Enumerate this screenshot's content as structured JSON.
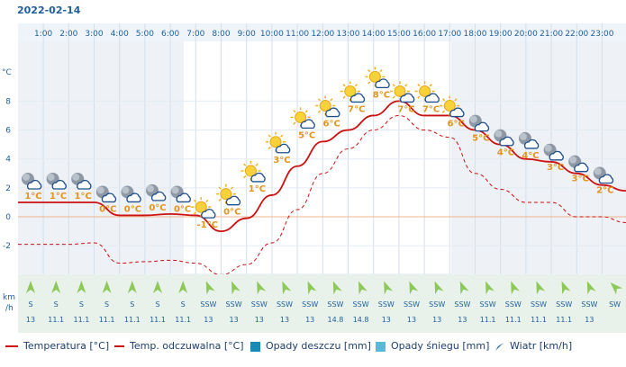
{
  "date": "2022-02-14",
  "units": {
    "temp_axis": "°C",
    "wind_axis_top": "km",
    "wind_axis_bottom": "/h"
  },
  "legend": {
    "temperature": "Temperatura [°C]",
    "feels_like": "Temp. odczuwalna [°C]",
    "rain": "Opady deszczu [mm]",
    "snow": "Opady śniegu [mm]",
    "wind": "Wiatr [km/h]"
  },
  "colors": {
    "temperature": "#cc1111",
    "feels_like": "#cc1111",
    "rain": "#1a8ab4",
    "snow": "#5bb8d6",
    "axis_text": "#1f5f9e",
    "temp_label": "#e3941c"
  },
  "chart_data": {
    "type": "line",
    "x": [
      "1:00",
      "2:00",
      "3:00",
      "4:00",
      "5:00",
      "6:00",
      "7:00",
      "8:00",
      "9:00",
      "10:00",
      "11:00",
      "12:00",
      "13:00",
      "14:00",
      "15:00",
      "16:00",
      "17:00",
      "18:00",
      "19:00",
      "20:00",
      "21:00",
      "22:00",
      "23:00"
    ],
    "series": [
      {
        "name": "Temperatura [°C]",
        "values": [
          1.0,
          1.0,
          1.0,
          0.1,
          0.1,
          0.2,
          0.1,
          -1.0,
          -0.1,
          1.5,
          3.5,
          5.2,
          6.0,
          7.0,
          8.0,
          7.0,
          7.0,
          6.0,
          5.0,
          4.0,
          3.8,
          3.0,
          2.2
        ]
      },
      {
        "name": "Temp. odczuwalna [°C]",
        "values": [
          -1.9,
          -1.9,
          -1.8,
          -3.2,
          -3.1,
          -3.0,
          -3.2,
          -4.0,
          -3.3,
          -1.8,
          0.5,
          3.0,
          4.7,
          6.0,
          7.0,
          6.0,
          5.5,
          3.0,
          1.9,
          1.0,
          1.0,
          0.0,
          0.0
        ]
      }
    ],
    "temp_labels": [
      "1°C",
      "1°C",
      "1°C",
      "0°C",
      "0°C",
      "0°C",
      "0°C",
      "-1°C",
      "0°C",
      "1°C",
      "3°C",
      "5°C",
      "6°C",
      "7°C",
      "8°C",
      "7°C",
      "7°C",
      "6°C",
      "5°C",
      "4°C",
      "4°C",
      "3°C",
      "3°C",
      "2°C"
    ],
    "wind_dir": [
      "S",
      "S",
      "S",
      "S",
      "S",
      "S",
      "S",
      "SSW",
      "SSW",
      "SSW",
      "SSW",
      "SSW",
      "SSW",
      "SSW",
      "SSW",
      "SSW",
      "SSW",
      "SSW",
      "SSW",
      "SSW",
      "SSW",
      "SSW",
      "SSW",
      "SW"
    ],
    "wind_speed": [
      "13",
      "11.1",
      "11.1",
      "11.1",
      "11.1",
      "11.1",
      "11.1",
      "13",
      "13",
      "13",
      "13",
      "13",
      "14.8",
      "14.8",
      "13",
      "13",
      "13",
      "13",
      "11.1",
      "11.1",
      "11.1",
      "11.1",
      "13",
      ""
    ],
    "y_ticks": [
      "8",
      "6",
      "4",
      "2",
      "0",
      "-2"
    ],
    "ylim": [
      -4,
      10
    ],
    "grid": true
  }
}
